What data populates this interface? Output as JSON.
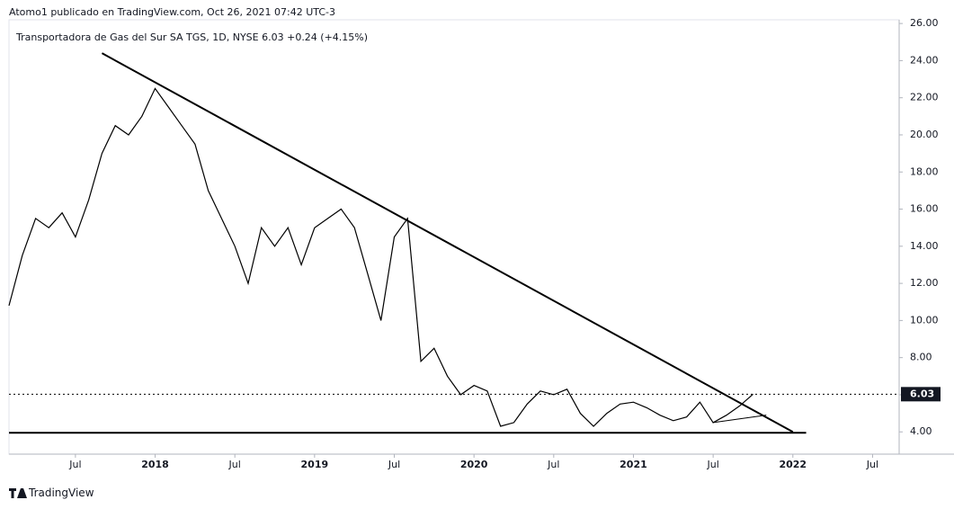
{
  "header": {
    "text": "Atomo1 publicado en TradingView.com, Oct 26, 2021 07:42 UTC-3"
  },
  "footer": {
    "text": "TradingView"
  },
  "chart_data": {
    "type": "line",
    "title": "Transportadora de Gas del Sur SA TGS, 1D, NYSE  6.03  +0.24 (+4.15%)",
    "x": [
      "2017-02",
      "2017-03",
      "2017-04",
      "2017-05",
      "2017-06",
      "2017-07",
      "2017-08",
      "2017-09",
      "2017-10",
      "2017-11",
      "2017-12",
      "2018-01",
      "2018-02",
      "2018-03",
      "2018-04",
      "2018-05",
      "2018-06",
      "2018-07",
      "2018-08",
      "2018-09",
      "2018-10",
      "2018-11",
      "2018-12",
      "2019-01",
      "2019-02",
      "2019-03",
      "2019-04",
      "2019-05",
      "2019-06",
      "2019-07",
      "2019-08",
      "2019-09",
      "2019-10",
      "2019-11",
      "2019-12",
      "2020-01",
      "2020-02",
      "2020-03",
      "2020-04",
      "2020-05",
      "2020-06",
      "2020-07",
      "2020-08",
      "2020-09",
      "2020-10",
      "2020-11",
      "2020-12",
      "2021-01",
      "2021-02",
      "2021-03",
      "2021-04",
      "2021-05",
      "2021-06",
      "2021-07",
      "2021-08",
      "2021-09",
      "2021-10"
    ],
    "series": [
      {
        "name": "TGS",
        "color": "#000000",
        "values": [
          10.8,
          13.5,
          15.5,
          15.0,
          15.8,
          14.5,
          16.5,
          19.0,
          20.5,
          20.0,
          21.0,
          22.5,
          21.5,
          20.5,
          19.5,
          17.0,
          15.5,
          14.0,
          12.0,
          15.0,
          14.0,
          15.0,
          13.0,
          15.0,
          15.5,
          16.0,
          15.0,
          12.5,
          10.0,
          14.5,
          15.5,
          7.8,
          8.5,
          7.0,
          6.0,
          6.5,
          6.2,
          4.3,
          4.5,
          5.5,
          6.2,
          6.0,
          6.3,
          5.0,
          4.3,
          5.0,
          5.5,
          5.6,
          5.3,
          4.9,
          4.6,
          4.8,
          5.6,
          4.5,
          4.9,
          5.4,
          6.03
        ]
      }
    ],
    "trendlines": [
      {
        "x": [
          "2017-09",
          "2022-01"
        ],
        "values": [
          24.4,
          4.0
        ]
      },
      {
        "x": [
          "2017-02",
          "2022-02"
        ],
        "values": [
          3.95,
          3.95
        ]
      },
      {
        "x": [
          "2021-07",
          "2021-11"
        ],
        "values": [
          4.5,
          4.9
        ]
      }
    ],
    "xlim": [
      "2017-02",
      "2022-09"
    ],
    "xticks": [
      {
        "value": "2017-07",
        "label": "Jul"
      },
      {
        "value": "2018-01",
        "label": "2018"
      },
      {
        "value": "2018-07",
        "label": "Jul"
      },
      {
        "value": "2019-01",
        "label": "2019"
      },
      {
        "value": "2019-07",
        "label": "Jul"
      },
      {
        "value": "2020-01",
        "label": "2020"
      },
      {
        "value": "2020-07",
        "label": "Jul"
      },
      {
        "value": "2021-01",
        "label": "2021"
      },
      {
        "value": "2021-07",
        "label": "Jul"
      },
      {
        "value": "2022-01",
        "label": "2022"
      },
      {
        "value": "2022-07",
        "label": "Jul"
      }
    ],
    "ylim": [
      2.8,
      26.2
    ],
    "yticks": [
      {
        "value": 4,
        "label": "4.00"
      },
      {
        "value": 6,
        "label": "6.00"
      },
      {
        "value": 8,
        "label": "8.00"
      },
      {
        "value": 10,
        "label": "10.00"
      },
      {
        "value": 12,
        "label": "12.00"
      },
      {
        "value": 14,
        "label": "14.00"
      },
      {
        "value": 16,
        "label": "16.00"
      },
      {
        "value": 18,
        "label": "18.00"
      },
      {
        "value": 20,
        "label": "20.00"
      },
      {
        "value": 22,
        "label": "22.00"
      },
      {
        "value": 24,
        "label": "24.00"
      },
      {
        "value": 26,
        "label": "26.00"
      }
    ]
  }
}
